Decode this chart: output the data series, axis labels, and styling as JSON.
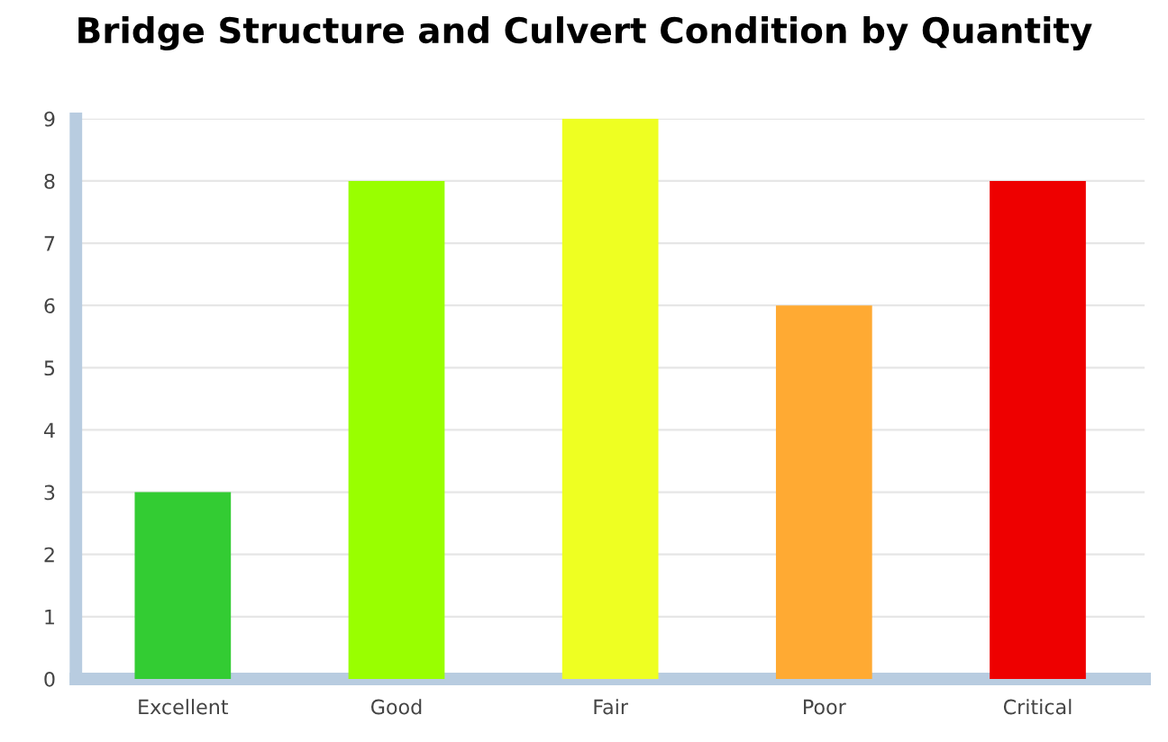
{
  "chart_data": {
    "type": "bar",
    "title": "Bridge Structure and Culvert Condition by Quantity",
    "categories": [
      "Excellent",
      "Good",
      "Fair",
      "Poor",
      "Critical"
    ],
    "values": [
      3,
      8,
      9,
      6,
      8
    ],
    "colors": [
      "#33cc33",
      "#99ff00",
      "#eeff22",
      "#ffaa33",
      "#ee0000"
    ],
    "ylim": [
      0,
      9
    ],
    "yticks": [
      0,
      1,
      2,
      3,
      4,
      5,
      6,
      7,
      8,
      9
    ],
    "grid": "y"
  }
}
